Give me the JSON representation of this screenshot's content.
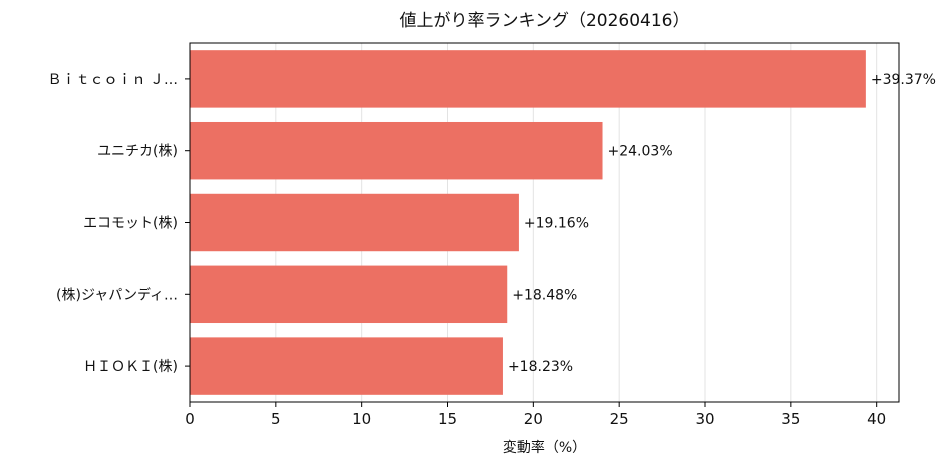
{
  "chart_data": {
    "type": "bar",
    "orientation": "horizontal",
    "title": "値上がり率ランキング（20260416）",
    "xlabel": "変動率（%）",
    "ylabel": "",
    "xlim": [
      0,
      41.3
    ],
    "xticks": [
      0,
      5,
      10,
      15,
      20,
      25,
      30,
      35,
      40
    ],
    "grid": "vertical",
    "categories": [
      "Ｂｉｔｃｏｉｎ Ｊ…",
      "ユニチカ(株)",
      "エコモット(株)",
      "(株)ジャパンディ…",
      "ＨＩＯＫＩ(株)"
    ],
    "values": [
      39.37,
      24.03,
      19.16,
      18.48,
      18.23
    ],
    "labels": [
      "+39.37%",
      "+24.03%",
      "+19.16%",
      "+18.48%",
      "+18.23%"
    ],
    "bar_color": "#ec7063"
  }
}
